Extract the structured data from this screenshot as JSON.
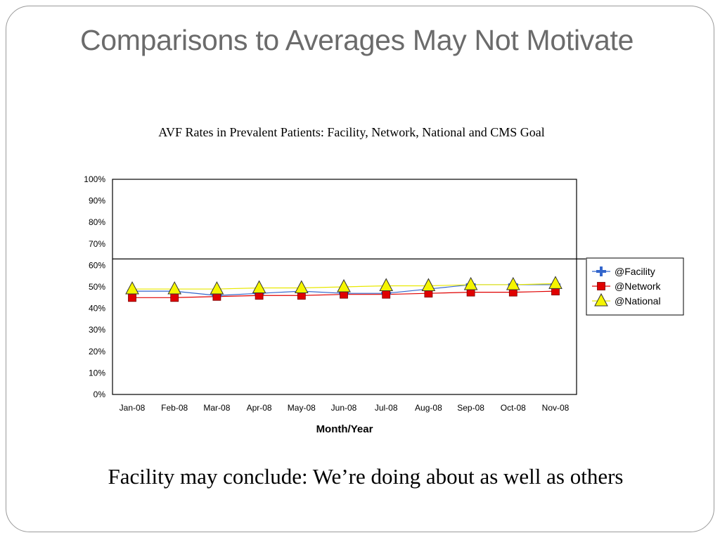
{
  "slide": {
    "title": "Comparisons to Averages May Not Motivate",
    "footer": "Facility may conclude: We’re doing about as well as others"
  },
  "chart_data": {
    "type": "line",
    "title": "AVF Rates in Prevalent Patients: Facility, Network, National and CMS Goal",
    "xlabel": "Month/Year",
    "ylabel": "",
    "categories": [
      "Jan-08",
      "Feb-08",
      "Mar-08",
      "Apr-08",
      "May-08",
      "Jun-08",
      "Jul-08",
      "Aug-08",
      "Sep-08",
      "Oct-08",
      "Nov-08"
    ],
    "ylim": [
      0,
      100
    ],
    "yticks": [
      "0%",
      "10%",
      "20%",
      "30%",
      "40%",
      "50%",
      "60%",
      "70%",
      "80%",
      "90%",
      "100%"
    ],
    "goal_line": 63,
    "legend_position": "right",
    "grid": false,
    "series": [
      {
        "name": "@Facility",
        "marker": "plus",
        "color": "#3366cc",
        "values": [
          48,
          48,
          46,
          47,
          48,
          47,
          47,
          49,
          51,
          51,
          51
        ]
      },
      {
        "name": "@Network",
        "marker": "square",
        "color": "#e00000",
        "values": [
          45,
          45,
          45.5,
          46,
          46,
          46.5,
          46.5,
          47,
          47.5,
          47.5,
          48
        ]
      },
      {
        "name": "@National",
        "marker": "triangle",
        "color": "#f5f500",
        "values": [
          49,
          49,
          49,
          49.5,
          49.5,
          50,
          50.5,
          50.5,
          51,
          51,
          51.5
        ]
      }
    ]
  }
}
